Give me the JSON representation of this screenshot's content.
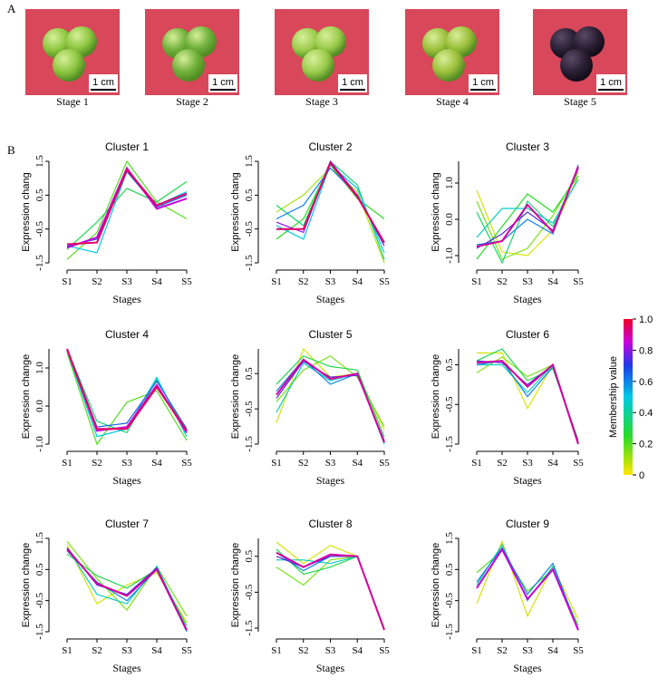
{
  "panels": {
    "a": "A",
    "b": "B"
  },
  "photos": [
    {
      "label": "Stage 1",
      "scale": "1 cm",
      "fruit_color": "#8cc63f",
      "bg": "#d8475a"
    },
    {
      "label": "Stage 2",
      "scale": "1 cm",
      "fruit_color": "#6fb03a",
      "bg": "#d8475a"
    },
    {
      "label": "Stage 3",
      "scale": "1 cm",
      "fruit_color": "#9ccc4c",
      "bg": "#d8475a"
    },
    {
      "label": "Stage 4",
      "scale": "1 cm",
      "fruit_color": "#9cbf3a",
      "bg": "#d8475a"
    },
    {
      "label": "Stage 5",
      "scale": "1 cm",
      "fruit_color": "#2a1f33",
      "bg": "#d8475a"
    }
  ],
  "legend": {
    "title": "Membership value",
    "ticks": [
      "1.0",
      "0.8",
      "0.6",
      "0.4",
      "0.2",
      "0"
    ]
  },
  "chart_data": [
    {
      "type": "line",
      "title": "Cluster 1",
      "ylabel": "Expression chang",
      "xlabel": "Stages",
      "categories": [
        "S1",
        "S2",
        "S3",
        "S4",
        "S5"
      ],
      "ylim": [
        -1.5,
        1.5
      ],
      "yticks": [
        "-1.5",
        "-0.5",
        "0.5",
        "1.5"
      ],
      "series": [
        {
          "m": 0.2,
          "values": [
            -1.4,
            -0.6,
            1.5,
            0.3,
            -0.2
          ]
        },
        {
          "m": 0.3,
          "values": [
            -1.1,
            -0.3,
            0.7,
            0.3,
            0.9
          ]
        },
        {
          "m": 0.5,
          "values": [
            -1.0,
            -1.2,
            1.2,
            0.2,
            0.6
          ]
        },
        {
          "m": 0.65,
          "values": [
            -1.0,
            -0.8,
            1.2,
            0.15,
            0.5
          ]
        },
        {
          "m": 0.85,
          "values": [
            -1.05,
            -0.75,
            1.3,
            0.1,
            0.4
          ]
        },
        {
          "m": 0.95,
          "values": [
            -0.95,
            -0.9,
            1.25,
            0.2,
            0.55
          ]
        }
      ]
    },
    {
      "type": "line",
      "title": "Cluster 2",
      "ylabel": "Expression chang",
      "xlabel": "Stages",
      "categories": [
        "S1",
        "S2",
        "S3",
        "S4",
        "S5"
      ],
      "ylim": [
        -1.5,
        1.5
      ],
      "yticks": [
        "-1.5",
        "-0.5",
        "0.5",
        "1.5"
      ],
      "series": [
        {
          "m": 0.1,
          "values": [
            0.0,
            0.5,
            1.3,
            0.6,
            -1.5
          ]
        },
        {
          "m": 0.25,
          "values": [
            -0.8,
            -0.2,
            1.4,
            0.4,
            -0.2
          ]
        },
        {
          "m": 0.35,
          "values": [
            0.2,
            -0.4,
            1.5,
            0.8,
            -1.4
          ]
        },
        {
          "m": 0.5,
          "values": [
            -0.4,
            -0.8,
            1.4,
            0.7,
            -1.2
          ]
        },
        {
          "m": 0.6,
          "values": [
            -0.2,
            0.2,
            1.3,
            0.5,
            -0.9
          ]
        },
        {
          "m": 0.8,
          "values": [
            -0.3,
            -0.6,
            1.5,
            0.5,
            -1.0
          ]
        },
        {
          "m": 0.95,
          "values": [
            -0.5,
            -0.5,
            1.45,
            0.45,
            -0.9
          ]
        }
      ]
    },
    {
      "type": "line",
      "title": "Cluster 3",
      "ylabel": "Expression chang",
      "xlabel": "Stages",
      "categories": [
        "S1",
        "S2",
        "S3",
        "S4",
        "S5"
      ],
      "ylim": [
        -1.2,
        1.6
      ],
      "yticks": [
        "-1.0",
        "0.0",
        "1.0"
      ],
      "series": [
        {
          "m": 0.05,
          "values": [
            0.8,
            -0.9,
            -1.0,
            -0.3,
            1.2
          ]
        },
        {
          "m": 0.15,
          "values": [
            0.5,
            -1.1,
            -0.8,
            0.1,
            1.3
          ]
        },
        {
          "m": 0.25,
          "values": [
            -1.1,
            -0.2,
            0.7,
            0.2,
            1.2
          ]
        },
        {
          "m": 0.35,
          "values": [
            0.2,
            -1.2,
            0.5,
            -0.2,
            1.4
          ]
        },
        {
          "m": 0.45,
          "values": [
            -0.5,
            0.3,
            0.3,
            -0.1,
            1.1
          ]
        },
        {
          "m": 0.6,
          "values": [
            -0.7,
            -0.6,
            0.0,
            -0.4,
            1.5
          ]
        },
        {
          "m": 0.75,
          "values": [
            -0.8,
            -0.4,
            0.2,
            -0.3,
            1.4
          ]
        },
        {
          "m": 0.9,
          "values": [
            -0.75,
            -0.6,
            0.4,
            -0.35,
            1.45
          ]
        }
      ]
    },
    {
      "type": "line",
      "title": "Cluster 4",
      "ylabel": "Expression change",
      "xlabel": "Stages",
      "categories": [
        "S1",
        "S2",
        "S3",
        "S4",
        "S5"
      ],
      "ylim": [
        -1.0,
        1.5
      ],
      "yticks": [
        "-1.0",
        "0.0",
        "1.0"
      ],
      "series": [
        {
          "m": 0.2,
          "values": [
            1.4,
            -1.0,
            0.1,
            0.4,
            -0.9
          ]
        },
        {
          "m": 0.35,
          "values": [
            1.5,
            -0.4,
            -0.7,
            0.7,
            -0.7
          ]
        },
        {
          "m": 0.5,
          "values": [
            1.45,
            -0.8,
            -0.6,
            0.75,
            -0.8
          ]
        },
        {
          "m": 0.65,
          "values": [
            1.5,
            -0.55,
            -0.45,
            0.65,
            -0.6
          ]
        },
        {
          "m": 0.85,
          "values": [
            1.5,
            -0.65,
            -0.55,
            0.55,
            -0.7
          ]
        },
        {
          "m": 0.95,
          "values": [
            1.5,
            -0.6,
            -0.6,
            0.5,
            -0.65
          ]
        }
      ]
    },
    {
      "type": "line",
      "title": "Cluster 5",
      "ylabel": "Expression change",
      "xlabel": "Stages",
      "categories": [
        "S1",
        "S2",
        "S3",
        "S4",
        "S5"
      ],
      "ylim": [
        -1.5,
        1.2
      ],
      "yticks": [
        "-1.5",
        "-0.5",
        "0.5"
      ],
      "series": [
        {
          "m": 0.05,
          "values": [
            -0.9,
            1.2,
            0.4,
            0.5,
            -1.1
          ]
        },
        {
          "m": 0.15,
          "values": [
            -0.3,
            0.6,
            1.0,
            0.4,
            -1.0
          ]
        },
        {
          "m": 0.3,
          "values": [
            0.2,
            1.0,
            0.7,
            0.6,
            -1.3
          ]
        },
        {
          "m": 0.45,
          "values": [
            -0.6,
            0.8,
            0.3,
            0.5,
            -1.5
          ]
        },
        {
          "m": 0.6,
          "values": [
            0.0,
            0.9,
            0.2,
            0.5,
            -1.45
          ]
        },
        {
          "m": 0.75,
          "values": [
            -0.2,
            0.85,
            0.4,
            0.45,
            -1.4
          ]
        },
        {
          "m": 0.9,
          "values": [
            -0.1,
            0.9,
            0.35,
            0.5,
            -1.45
          ]
        }
      ]
    },
    {
      "type": "line",
      "title": "Cluster 6",
      "ylabel": "Expression change",
      "xlabel": "Stages",
      "categories": [
        "S1",
        "S2",
        "S3",
        "S4",
        "S5"
      ],
      "ylim": [
        -1.5,
        0.9
      ],
      "yticks": [
        "-1.5",
        "-0.5",
        "0.5"
      ],
      "series": [
        {
          "m": 0.05,
          "values": [
            0.8,
            0.8,
            -0.6,
            0.5,
            -1.5
          ]
        },
        {
          "m": 0.15,
          "values": [
            0.3,
            0.7,
            0.2,
            0.5,
            -1.5
          ]
        },
        {
          "m": 0.3,
          "values": [
            0.6,
            0.9,
            0.1,
            0.4,
            -1.4
          ]
        },
        {
          "m": 0.45,
          "values": [
            0.5,
            0.5,
            -0.2,
            0.5,
            -1.5
          ]
        },
        {
          "m": 0.6,
          "values": [
            0.5,
            0.6,
            -0.3,
            0.45,
            -1.5
          ]
        },
        {
          "m": 0.75,
          "values": [
            0.6,
            0.55,
            0.0,
            0.5,
            -1.45
          ]
        },
        {
          "m": 0.9,
          "values": [
            0.55,
            0.6,
            -0.05,
            0.5,
            -1.5
          ]
        }
      ]
    },
    {
      "type": "line",
      "title": "Cluster 7",
      "ylabel": "Expression change",
      "xlabel": "Stages",
      "categories": [
        "S1",
        "S2",
        "S3",
        "S4",
        "S5"
      ],
      "ylim": [
        -1.5,
        1.5
      ],
      "yticks": [
        "-1.5",
        "-0.5",
        "0.5",
        "1.5"
      ],
      "series": [
        {
          "m": 0.05,
          "values": [
            1.3,
            -0.6,
            0.0,
            0.4,
            -1.2
          ]
        },
        {
          "m": 0.15,
          "values": [
            1.4,
            0.2,
            -0.8,
            0.6,
            -1.0
          ]
        },
        {
          "m": 0.3,
          "values": [
            1.0,
            0.3,
            -0.1,
            0.5,
            -1.3
          ]
        },
        {
          "m": 0.45,
          "values": [
            1.2,
            -0.3,
            -0.6,
            0.6,
            -1.4
          ]
        },
        {
          "m": 0.6,
          "values": [
            1.1,
            0.1,
            -0.5,
            0.5,
            -1.5
          ]
        },
        {
          "m": 0.75,
          "values": [
            1.2,
            0.0,
            -0.3,
            0.55,
            -1.45
          ]
        },
        {
          "m": 0.9,
          "values": [
            1.15,
            0.05,
            -0.35,
            0.5,
            -1.45
          ]
        }
      ]
    },
    {
      "type": "line",
      "title": "Cluster 8",
      "ylabel": "Expression change",
      "xlabel": "Stages",
      "categories": [
        "S1",
        "S2",
        "S3",
        "S4",
        "S5"
      ],
      "ylim": [
        -1.6,
        1.0
      ],
      "yticks": [
        "-1.5",
        "-0.5",
        "0.5"
      ],
      "series": [
        {
          "m": 0.05,
          "values": [
            0.9,
            0.3,
            0.8,
            0.5,
            -1.5
          ]
        },
        {
          "m": 0.15,
          "values": [
            0.2,
            -0.3,
            0.4,
            0.5,
            -1.55
          ]
        },
        {
          "m": 0.3,
          "values": [
            0.7,
            0.0,
            0.2,
            0.5,
            -1.55
          ]
        },
        {
          "m": 0.45,
          "values": [
            0.4,
            0.4,
            0.3,
            0.5,
            -1.55
          ]
        },
        {
          "m": 0.6,
          "values": [
            0.6,
            0.1,
            0.5,
            0.5,
            -1.55
          ]
        },
        {
          "m": 0.75,
          "values": [
            0.5,
            0.2,
            0.5,
            0.5,
            -1.55
          ]
        },
        {
          "m": 0.9,
          "values": [
            0.6,
            0.2,
            0.55,
            0.5,
            -1.55
          ]
        }
      ]
    },
    {
      "type": "line",
      "title": "Cluster  9",
      "ylabel": "Expression change",
      "xlabel": "Stages",
      "categories": [
        "S1",
        "S2",
        "S3",
        "S4",
        "S5"
      ],
      "ylim": [
        -1.5,
        1.5
      ],
      "yticks": [
        "-1.5",
        "-0.5",
        "0.5",
        "1.5"
      ],
      "series": [
        {
          "m": 0.05,
          "values": [
            -0.6,
            1.4,
            -1.0,
            0.6,
            -1.1
          ]
        },
        {
          "m": 0.2,
          "values": [
            0.4,
            1.1,
            -0.2,
            0.5,
            -1.3
          ]
        },
        {
          "m": 0.4,
          "values": [
            0.0,
            1.3,
            -0.5,
            0.6,
            -1.4
          ]
        },
        {
          "m": 0.6,
          "values": [
            0.1,
            1.2,
            -0.3,
            0.7,
            -1.45
          ]
        },
        {
          "m": 0.85,
          "values": [
            -0.1,
            1.15,
            -0.45,
            0.5,
            -1.45
          ]
        }
      ]
    }
  ]
}
